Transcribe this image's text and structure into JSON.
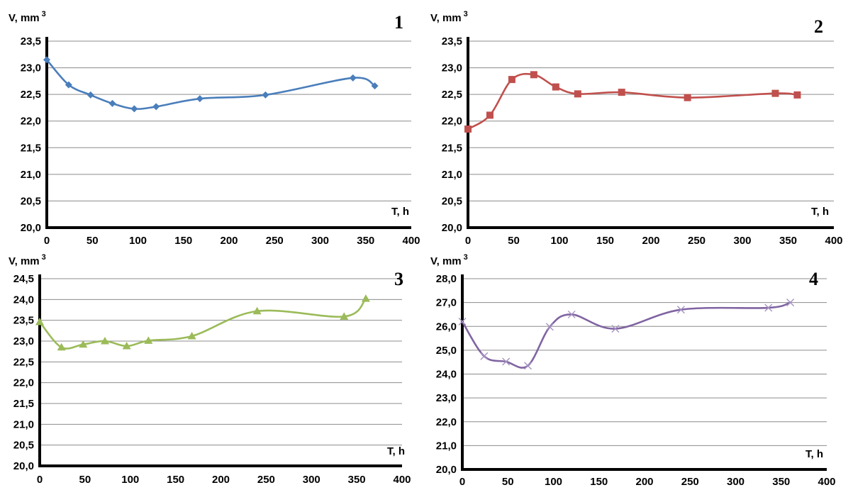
{
  "chart_data": [
    {
      "type": "line",
      "panel_label": "1",
      "ylabel": "V, mm",
      "ylabel_sup": "3",
      "xlabel": "T, h",
      "color": "#4a7ebb",
      "marker": "diamond",
      "xlim": [
        0,
        400
      ],
      "ylim": [
        20.0,
        23.5
      ],
      "x_ticks": [
        "0",
        "50",
        "100",
        "150",
        "200",
        "250",
        "300",
        "350",
        "400"
      ],
      "y_ticks": [
        "20,0",
        "20,5",
        "21,0",
        "21,5",
        "22,0",
        "22,5",
        "23,0",
        "23,5"
      ],
      "grid": true,
      "smooth": true,
      "series": [
        {
          "x": [
            0,
            24,
            48,
            72,
            96,
            120,
            168,
            240,
            336,
            360
          ],
          "y": [
            23.15,
            22.68,
            22.49,
            22.33,
            22.23,
            22.27,
            22.42,
            22.49,
            22.81,
            22.66
          ]
        }
      ]
    },
    {
      "type": "line",
      "panel_label": "2",
      "ylabel": "V, mm",
      "ylabel_sup": "3",
      "xlabel": "T, h",
      "color": "#c0504d",
      "marker": "square",
      "xlim": [
        0,
        400
      ],
      "ylim": [
        20.0,
        23.5
      ],
      "x_ticks": [
        "0",
        "50",
        "100",
        "150",
        "200",
        "250",
        "300",
        "350",
        "400"
      ],
      "y_ticks": [
        "20,0",
        "20,5",
        "21,0",
        "21,5",
        "22,0",
        "22,5",
        "23,0",
        "23,5"
      ],
      "grid": true,
      "smooth": true,
      "series": [
        {
          "x": [
            0,
            24,
            48,
            72,
            96,
            120,
            168,
            240,
            336,
            360
          ],
          "y": [
            21.85,
            22.11,
            22.78,
            22.87,
            22.64,
            22.51,
            22.54,
            22.44,
            22.52,
            22.49
          ]
        }
      ]
    },
    {
      "type": "line",
      "panel_label": "3",
      "ylabel": "V, mm",
      "ylabel_sup": "3",
      "xlabel": "T, h",
      "color": "#9bbb59",
      "marker": "triangle",
      "xlim": [
        0,
        400
      ],
      "ylim": [
        20.0,
        24.5
      ],
      "x_ticks": [
        "0",
        "50",
        "100",
        "150",
        "200",
        "250",
        "300",
        "350",
        "400"
      ],
      "y_ticks": [
        "20,0",
        "20,5",
        "21,0",
        "21,5",
        "22,0",
        "22,5",
        "23,0",
        "23,5",
        "24,0",
        "24,5"
      ],
      "grid": true,
      "smooth": true,
      "series": [
        {
          "x": [
            0,
            24,
            48,
            72,
            96,
            120,
            168,
            240,
            336,
            360
          ],
          "y": [
            23.46,
            22.85,
            22.92,
            23.0,
            22.88,
            23.01,
            23.12,
            23.72,
            23.59,
            24.02
          ]
        }
      ]
    },
    {
      "type": "line",
      "panel_label": "4",
      "ylabel": "V, mm",
      "ylabel_sup": "3",
      "xlabel": "T, h",
      "color": "#8064a2",
      "marker": "x",
      "xlim": [
        0,
        400
      ],
      "ylim": [
        20.0,
        28.0
      ],
      "x_ticks": [
        "0",
        "50",
        "100",
        "150",
        "200",
        "250",
        "300",
        "350",
        "400"
      ],
      "y_ticks": [
        "20,0",
        "21,0",
        "22,0",
        "23,0",
        "24,0",
        "25,0",
        "26,0",
        "27,0",
        "28,0"
      ],
      "grid": true,
      "smooth": true,
      "series": [
        {
          "x": [
            0,
            24,
            48,
            72,
            96,
            120,
            168,
            240,
            336,
            360
          ],
          "y": [
            26.2,
            24.75,
            24.52,
            24.35,
            25.98,
            26.5,
            25.9,
            26.7,
            26.78,
            27.0
          ]
        }
      ]
    }
  ]
}
